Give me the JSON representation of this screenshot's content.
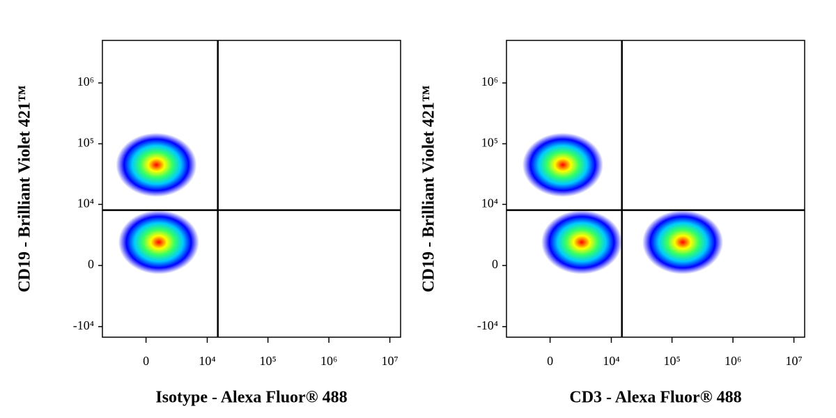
{
  "chart_data": [
    {
      "type": "scatter",
      "x_label": "Isotype - Alexa Fluor® 488",
      "y_label": "CD19 - Brilliant Violet 421™",
      "xscale": "biexponential",
      "yscale": "biexponential",
      "xlim": [
        -5000,
        15000000
      ],
      "ylim": [
        -15000,
        5000000
      ],
      "xticks": [
        0,
        {
          "value": 10000,
          "label": "10⁴"
        },
        {
          "value": 100000,
          "label": "10⁵"
        },
        {
          "value": 1000000,
          "label": "10⁶"
        },
        {
          "value": 10000000,
          "label": "10⁷"
        }
      ],
      "yticks": [
        {
          "value": -10000,
          "label": "-10⁴"
        },
        0,
        {
          "value": 10000,
          "label": "10⁴"
        },
        {
          "value": 100000,
          "label": "10⁵"
        },
        {
          "value": 1000000,
          "label": "10⁶"
        }
      ],
      "x": [
        800,
        1000
      ],
      "y": [
        45000,
        2000
      ],
      "gate": {
        "x": 15000,
        "y": 8000
      },
      "colors": [
        "#ff0000",
        "#ffff00",
        "#33ff66",
        "#00ccff",
        "#0000ff"
      ]
    },
    {
      "type": "scatter",
      "x_label": "CD3 - Alexa Fluor® 488",
      "y_label": "CD19 - Brilliant Violet 421™",
      "xscale": "biexponential",
      "yscale": "biexponential",
      "xlim": [
        -5000,
        15000000
      ],
      "ylim": [
        -15000,
        5000000
      ],
      "xticks": [
        0,
        {
          "value": 10000,
          "label": "10⁴"
        },
        {
          "value": 100000,
          "label": "10⁵"
        },
        {
          "value": 1000000,
          "label": "10⁶"
        },
        {
          "value": 10000000,
          "label": "10⁷"
        }
      ],
      "yticks": [
        {
          "value": -10000,
          "label": "-10⁴"
        },
        0,
        {
          "value": 10000,
          "label": "10⁴"
        },
        {
          "value": 100000,
          "label": "10⁵"
        },
        {
          "value": 1000000,
          "label": "10⁶"
        }
      ],
      "x": [
        1000,
        3000,
        150000
      ],
      "y": [
        45000,
        2000,
        2000
      ],
      "gate": {
        "x": 15000,
        "y": 8000
      },
      "colors": [
        "#ff0000",
        "#ffff00",
        "#33ff66",
        "#00ccff",
        "#0000ff"
      ]
    }
  ]
}
